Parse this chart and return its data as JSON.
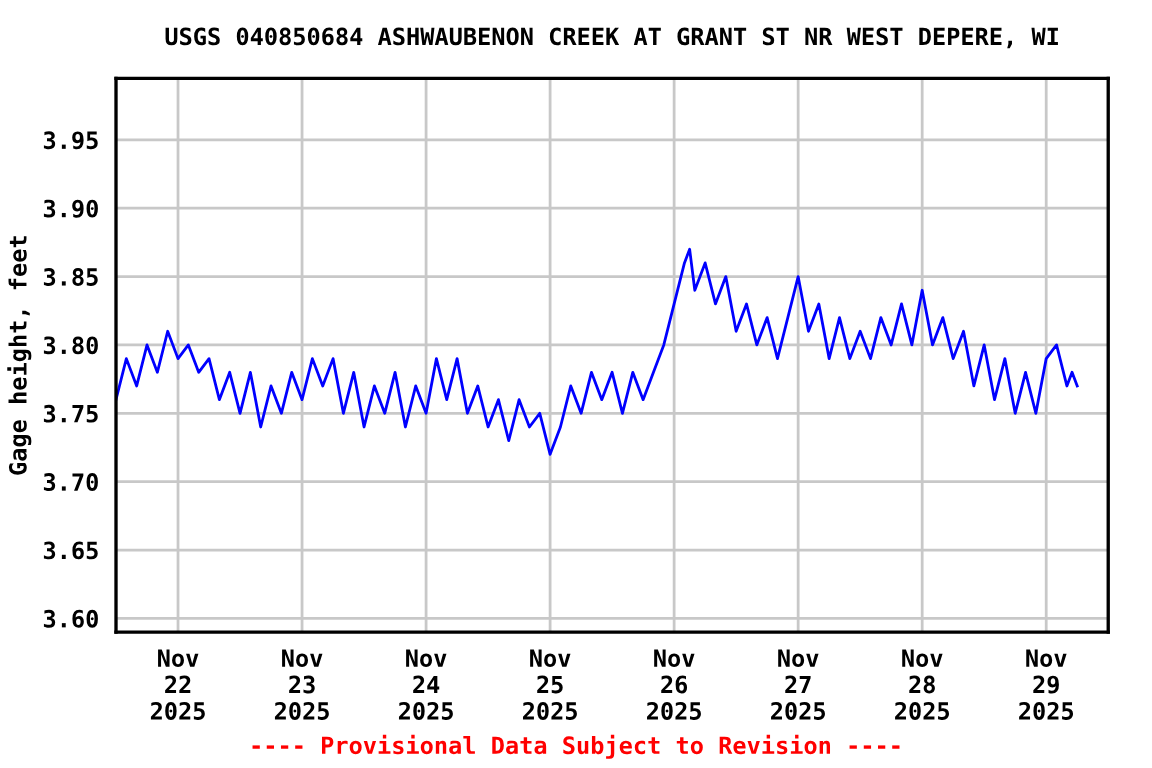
{
  "chart_data": {
    "type": "line",
    "title": "USGS 040850684 ASHWAUBENON CREEK AT GRANT ST NR WEST DEPERE, WI",
    "ylabel": "Gage height, feet",
    "annotations": [
      "---- Provisional Data Subject to Revision ----"
    ],
    "x": [
      "2025-11-21T12:00",
      "2025-11-21T14:00",
      "2025-11-21T16:00",
      "2025-11-21T18:00",
      "2025-11-21T20:00",
      "2025-11-21T22:00",
      "2025-11-22T00:00",
      "2025-11-22T02:00",
      "2025-11-22T04:00",
      "2025-11-22T06:00",
      "2025-11-22T08:00",
      "2025-11-22T10:00",
      "2025-11-22T12:00",
      "2025-11-22T14:00",
      "2025-11-22T16:00",
      "2025-11-22T18:00",
      "2025-11-22T20:00",
      "2025-11-22T22:00",
      "2025-11-23T00:00",
      "2025-11-23T02:00",
      "2025-11-23T04:00",
      "2025-11-23T06:00",
      "2025-11-23T08:00",
      "2025-11-23T10:00",
      "2025-11-23T12:00",
      "2025-11-23T14:00",
      "2025-11-23T16:00",
      "2025-11-23T18:00",
      "2025-11-23T20:00",
      "2025-11-23T22:00",
      "2025-11-24T00:00",
      "2025-11-24T02:00",
      "2025-11-24T04:00",
      "2025-11-24T06:00",
      "2025-11-24T08:00",
      "2025-11-24T10:00",
      "2025-11-24T12:00",
      "2025-11-24T14:00",
      "2025-11-24T16:00",
      "2025-11-24T18:00",
      "2025-11-24T20:00",
      "2025-11-24T22:00",
      "2025-11-25T00:00",
      "2025-11-25T02:00",
      "2025-11-25T04:00",
      "2025-11-25T06:00",
      "2025-11-25T08:00",
      "2025-11-25T10:00",
      "2025-11-25T12:00",
      "2025-11-25T14:00",
      "2025-11-25T16:00",
      "2025-11-25T18:00",
      "2025-11-25T20:00",
      "2025-11-25T22:00",
      "2025-11-26T00:00",
      "2025-11-26T02:00",
      "2025-11-26T03:00",
      "2025-11-26T04:00",
      "2025-11-26T06:00",
      "2025-11-26T08:00",
      "2025-11-26T10:00",
      "2025-11-26T12:00",
      "2025-11-26T14:00",
      "2025-11-26T16:00",
      "2025-11-26T18:00",
      "2025-11-26T20:00",
      "2025-11-26T22:00",
      "2025-11-27T00:00",
      "2025-11-27T02:00",
      "2025-11-27T04:00",
      "2025-11-27T06:00",
      "2025-11-27T08:00",
      "2025-11-27T10:00",
      "2025-11-27T12:00",
      "2025-11-27T14:00",
      "2025-11-27T16:00",
      "2025-11-27T18:00",
      "2025-11-27T20:00",
      "2025-11-27T22:00",
      "2025-11-28T00:00",
      "2025-11-28T02:00",
      "2025-11-28T04:00",
      "2025-11-28T06:00",
      "2025-11-28T08:00",
      "2025-11-28T10:00",
      "2025-11-28T12:00",
      "2025-11-28T14:00",
      "2025-11-28T16:00",
      "2025-11-28T18:00",
      "2025-11-28T20:00",
      "2025-11-28T22:00",
      "2025-11-29T00:00",
      "2025-11-29T02:00",
      "2025-11-29T04:00",
      "2025-11-29T05:00",
      "2025-11-29T06:00"
    ],
    "series": [
      {
        "color": "#0000ff",
        "values": [
          3.76,
          3.79,
          3.77,
          3.8,
          3.78,
          3.81,
          3.79,
          3.8,
          3.78,
          3.79,
          3.76,
          3.78,
          3.75,
          3.78,
          3.74,
          3.77,
          3.75,
          3.78,
          3.76,
          3.79,
          3.77,
          3.79,
          3.75,
          3.78,
          3.74,
          3.77,
          3.75,
          3.78,
          3.74,
          3.77,
          3.75,
          3.79,
          3.76,
          3.79,
          3.75,
          3.77,
          3.74,
          3.76,
          3.73,
          3.76,
          3.74,
          3.75,
          3.72,
          3.74,
          3.77,
          3.75,
          3.78,
          3.76,
          3.78,
          3.75,
          3.78,
          3.76,
          3.78,
          3.8,
          3.83,
          3.86,
          3.87,
          3.84,
          3.86,
          3.83,
          3.85,
          3.81,
          3.83,
          3.8,
          3.82,
          3.79,
          3.82,
          3.85,
          3.81,
          3.83,
          3.79,
          3.82,
          3.79,
          3.81,
          3.79,
          3.82,
          3.8,
          3.83,
          3.8,
          3.84,
          3.8,
          3.82,
          3.79,
          3.81,
          3.77,
          3.8,
          3.76,
          3.79,
          3.75,
          3.78,
          3.75,
          3.79,
          3.8,
          3.77,
          3.78,
          3.77
        ]
      }
    ],
    "xlim": [
      "2025-11-21T12:00",
      "2025-11-29T12:00"
    ],
    "xticks": [
      {
        "value": "2025-11-22",
        "label": "Nov\n22\n2025"
      },
      {
        "value": "2025-11-23",
        "label": "Nov\n23\n2025"
      },
      {
        "value": "2025-11-24",
        "label": "Nov\n24\n2025"
      },
      {
        "value": "2025-11-25",
        "label": "Nov\n25\n2025"
      },
      {
        "value": "2025-11-26",
        "label": "Nov\n26\n2025"
      },
      {
        "value": "2025-11-27",
        "label": "Nov\n27\n2025"
      },
      {
        "value": "2025-11-28",
        "label": "Nov\n28\n2025"
      },
      {
        "value": "2025-11-29",
        "label": "Nov\n29\n2025"
      }
    ],
    "ylim": [
      3.59,
      3.995
    ],
    "yticks": [
      {
        "value": 3.6,
        "label": "3.60"
      },
      {
        "value": 3.65,
        "label": "3.65"
      },
      {
        "value": 3.7,
        "label": "3.70"
      },
      {
        "value": 3.75,
        "label": "3.75"
      },
      {
        "value": 3.8,
        "label": "3.80"
      },
      {
        "value": 3.85,
        "label": "3.85"
      },
      {
        "value": 3.9,
        "label": "3.90"
      },
      {
        "value": 3.95,
        "label": "3.95"
      }
    ],
    "grid": true,
    "line_style": "solid"
  }
}
